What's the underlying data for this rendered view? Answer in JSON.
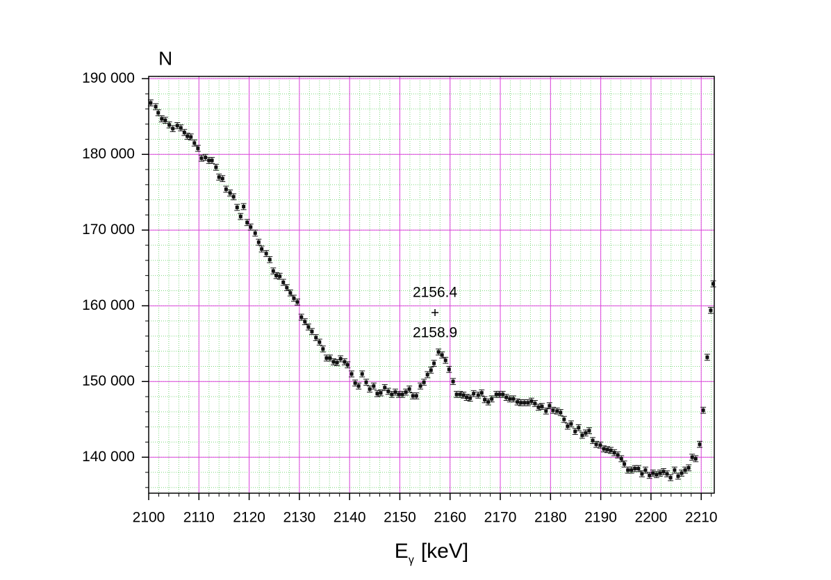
{
  "chart_data": {
    "type": "errorbar-scatter",
    "ylabel": "N",
    "xlabel": {
      "main": "E",
      "sub": "γ",
      "unit": "[keV]"
    },
    "xlim": [
      2100,
      2212.6
    ],
    "ylim": [
      135250,
      190300
    ],
    "xticks": [
      2100,
      2110,
      2120,
      2130,
      2140,
      2150,
      2160,
      2170,
      2180,
      2190,
      2200,
      2210
    ],
    "yticks": [
      {
        "value": 140000,
        "label": "140 000"
      },
      {
        "value": 150000,
        "label": "150 000"
      },
      {
        "value": 160000,
        "label": "160 000"
      },
      {
        "value": 170000,
        "label": "170 000"
      },
      {
        "value": 180000,
        "label": "180 000"
      },
      {
        "value": 190000,
        "label": "190 000"
      }
    ],
    "grid": true,
    "grid_color": "#e040e0",
    "minor_grid_color": "#7ad67a",
    "minor_divisions": 5,
    "series": [
      {
        "color": "#111111",
        "error": 400,
        "x": [
          2100.4,
          2101.4,
          2101.9,
          2102.6,
          2103.3,
          2104.1,
          2104.8,
          2105.7,
          2106.4,
          2107.1,
          2107.7,
          2108.4,
          2109.1,
          2109.8,
          2110.5,
          2111.3,
          2112.0,
          2112.6,
          2113.4,
          2114.0,
          2114.7,
          2115.4,
          2116.2,
          2116.9,
          2117.6,
          2118.3,
          2118.9,
          2119.6,
          2120.3,
          2121.2,
          2121.9,
          2122.5,
          2123.4,
          2124.1,
          2124.8,
          2125.4,
          2126.1,
          2126.8,
          2127.5,
          2128.2,
          2128.9,
          2129.6,
          2130.4,
          2131.1,
          2131.8,
          2132.5,
          2133.3,
          2134.0,
          2134.7,
          2135.4,
          2136.1,
          2136.8,
          2137.5,
          2138.2,
          2139.0,
          2139.6,
          2140.4,
          2141.1,
          2141.8,
          2142.5,
          2143.3,
          2144.0,
          2144.8,
          2145.5,
          2146.2,
          2147.0,
          2147.7,
          2148.4,
          2149.1,
          2149.8,
          2150.5,
          2151.2,
          2151.9,
          2152.6,
          2153.3,
          2154.1,
          2154.8,
          2155.5,
          2156.2,
          2156.8,
          2157.7,
          2158.4,
          2159.1,
          2159.8,
          2160.6,
          2161.3,
          2162.0,
          2162.7,
          2163.3,
          2164.0,
          2164.7,
          2165.6,
          2166.3,
          2166.9,
          2167.6,
          2168.3,
          2169.2,
          2169.8,
          2170.5,
          2171.2,
          2171.9,
          2172.6,
          2173.4,
          2174.1,
          2174.8,
          2175.5,
          2176.2,
          2176.9,
          2177.6,
          2178.3,
          2179.1,
          2179.8,
          2180.5,
          2181.3,
          2182.0,
          2182.7,
          2183.4,
          2184.1,
          2184.9,
          2185.6,
          2186.3,
          2187.0,
          2187.7,
          2188.4,
          2189.1,
          2189.9,
          2190.6,
          2191.3,
          2192.0,
          2192.7,
          2193.4,
          2194.1,
          2194.7,
          2195.4,
          2196.1,
          2196.8,
          2197.5,
          2198.2,
          2198.9,
          2199.7,
          2200.4,
          2201.1,
          2201.8,
          2202.5,
          2203.2,
          2203.9,
          2204.7,
          2205.4,
          2206.1,
          2206.8,
          2207.5,
          2208.2,
          2208.9,
          2209.7,
          2210.4,
          2211.2,
          2211.9,
          2212.4
        ],
        "values": [
          186800,
          186300,
          185500,
          184700,
          184500,
          183900,
          183400,
          183800,
          183500,
          182900,
          182400,
          182300,
          181500,
          180800,
          179500,
          179600,
          179200,
          179200,
          178300,
          177000,
          176800,
          175400,
          174900,
          174400,
          173000,
          171800,
          173100,
          171000,
          170400,
          169600,
          168400,
          167500,
          166900,
          166100,
          164600,
          164000,
          163900,
          163100,
          162400,
          161700,
          161000,
          160500,
          158500,
          157900,
          157200,
          156600,
          155800,
          155200,
          154300,
          153100,
          153100,
          152600,
          152500,
          153000,
          152600,
          152200,
          151000,
          149800,
          149400,
          151000,
          149900,
          149000,
          149400,
          148400,
          148500,
          149200,
          148700,
          148300,
          148600,
          148300,
          148300,
          148600,
          149000,
          148100,
          148100,
          149400,
          149900,
          150900,
          151500,
          152400,
          153900,
          153500,
          152800,
          151600,
          150000,
          148300,
          148300,
          148200,
          147900,
          147800,
          148400,
          148200,
          148500,
          147600,
          147300,
          147700,
          148300,
          148300,
          148300,
          147900,
          147700,
          147700,
          147300,
          147200,
          147200,
          147200,
          147400,
          147100,
          146600,
          146700,
          146100,
          146800,
          146200,
          146100,
          145900,
          145000,
          144100,
          144400,
          143400,
          143900,
          142900,
          143200,
          143500,
          142200,
          141700,
          141600,
          141100,
          141000,
          140900,
          140600,
          140300,
          139800,
          139100,
          138300,
          138300,
          138500,
          138500,
          137800,
          138300,
          137600,
          137900,
          137700,
          137900,
          138100,
          137800,
          137300,
          138300,
          137500,
          137900,
          138300,
          138600,
          140000,
          139800,
          141700,
          146200,
          153200,
          159400,
          162900
        ]
      }
    ],
    "annotation": {
      "x": 2157,
      "y": 159100,
      "texts": [
        "2156.4",
        "2158.9"
      ]
    }
  }
}
